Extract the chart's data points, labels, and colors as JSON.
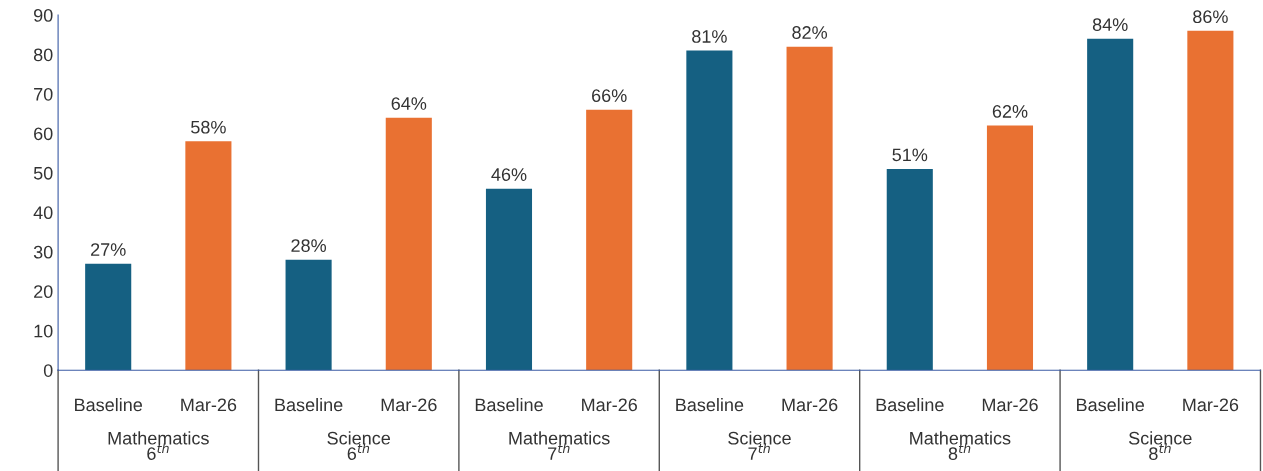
{
  "chart_data": {
    "type": "bar",
    "categories": [
      "Mathematics\n6$^{th}$",
      "Science\n6$^{th}$",
      "Mathematics\n7$^{th}$",
      "Science\n7$^{th}$",
      "Mathematics\n8$^{th}$",
      "Science\n8$^{th}$"
    ],
    "series": [
      {
        "name": "Baseline",
        "color": "#156082",
        "values": [
          27,
          28,
          46,
          81,
          51,
          84
        ],
        "value_labels": [
          "27%",
          "28%",
          "46%",
          "81%",
          "51%",
          "84%"
        ]
      },
      {
        "name": "Mar-26",
        "color": "#e97132",
        "values": [
          58,
          64,
          66,
          82,
          62,
          86
        ],
        "value_labels": [
          "58%",
          "64%",
          "66%",
          "82%",
          "62%",
          "86%"
        ]
      }
    ],
    "ylim": [
      0,
      90
    ],
    "yticks": [
      0,
      10,
      20,
      30,
      40,
      50,
      60,
      70,
      80,
      90
    ],
    "grid": false,
    "legend": false
  }
}
